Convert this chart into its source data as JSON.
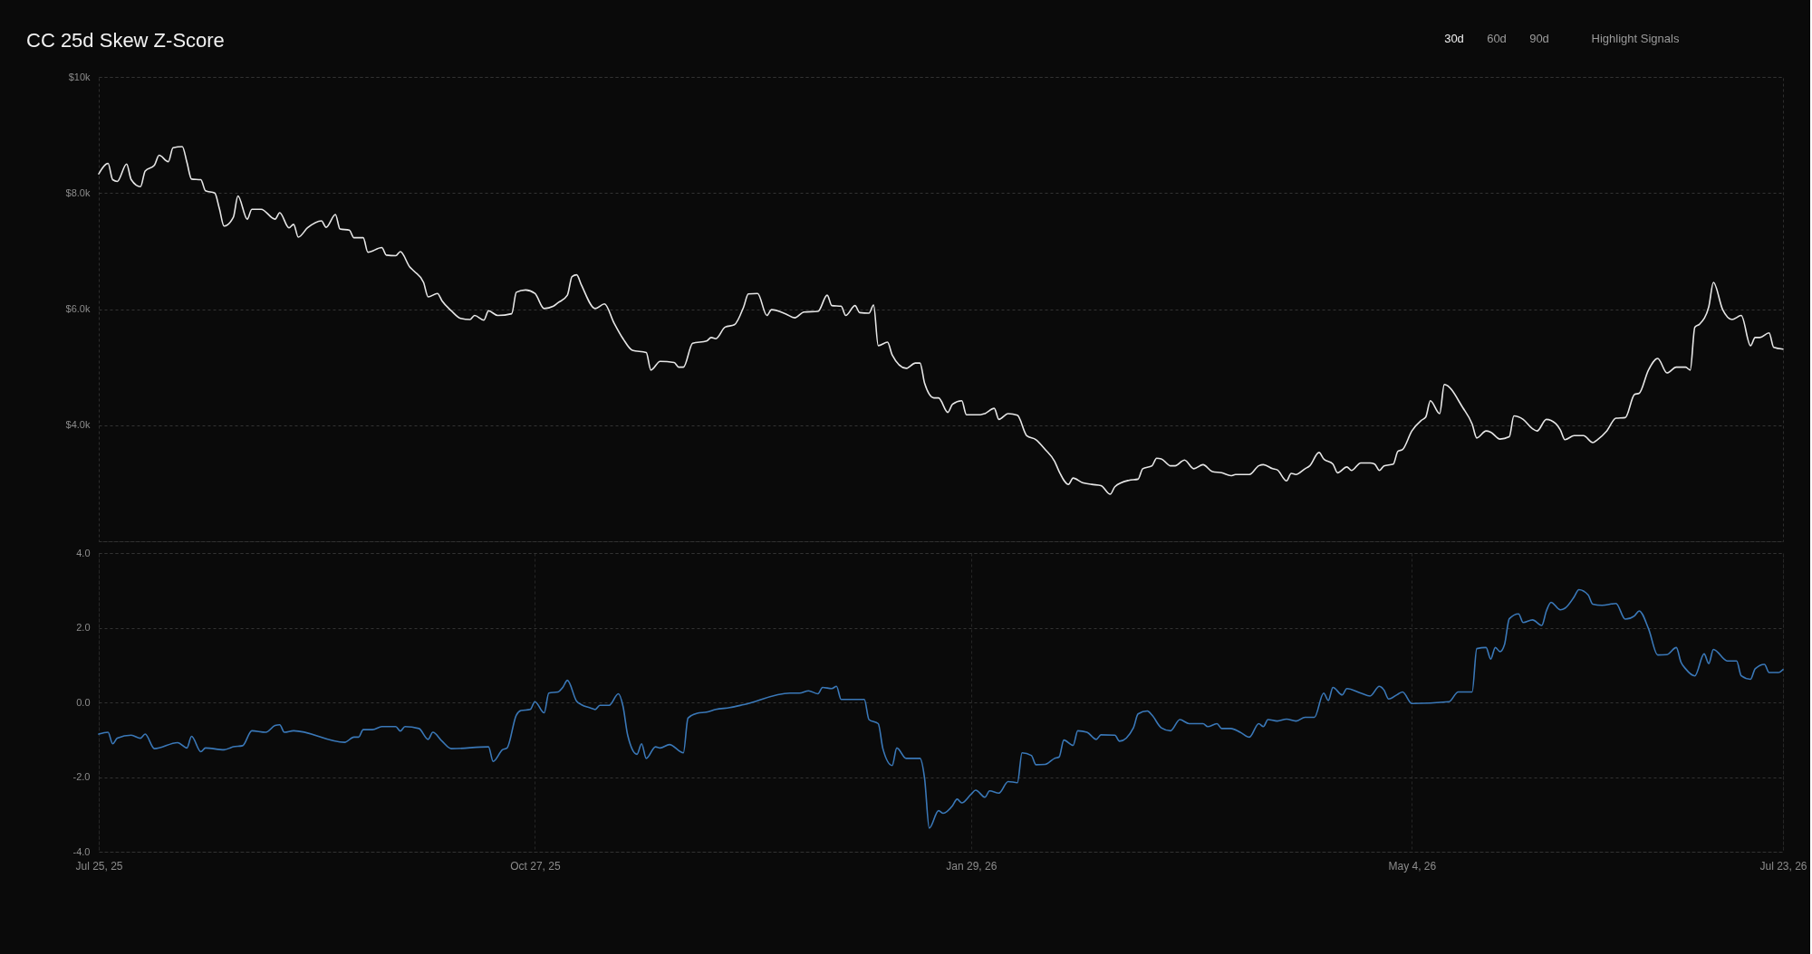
{
  "chart_data": [
    {
      "type": "line",
      "title": "CC 25d Skew Z-Score",
      "annotations": [
        "30d",
        "60d",
        "90d",
        "Highlight Signals"
      ],
      "x": [
        "2025-07-25",
        "2025-07-27",
        "2025-07-28",
        "2025-07-29",
        "2025-07-31",
        "2025-08-01",
        "2025-08-03",
        "2025-08-04",
        "2025-08-06",
        "2025-08-07",
        "2025-08-09",
        "2025-08-10",
        "2025-08-12",
        "2025-08-13",
        "2025-08-14",
        "2025-08-16",
        "2025-08-17",
        "2025-08-19",
        "2025-08-20",
        "2025-08-21",
        "2025-08-23",
        "2025-08-24",
        "2025-08-26",
        "2025-08-27",
        "2025-08-29",
        "2025-09-01",
        "2025-09-02",
        "2025-09-04",
        "2025-09-05",
        "2025-09-06",
        "2025-09-08",
        "2025-09-11",
        "2025-09-12",
        "2025-09-14",
        "2025-09-15",
        "2025-09-17",
        "2025-09-18",
        "2025-09-20",
        "2025-09-21",
        "2025-09-24",
        "2025-09-25",
        "2025-09-27",
        "2025-09-28",
        "2025-09-30",
        "2025-10-01",
        "2025-10-03",
        "2025-10-04",
        "2025-10-06",
        "2025-10-07",
        "2025-10-09",
        "2025-10-11",
        "2025-10-13",
        "2025-10-14",
        "2025-10-16",
        "2025-10-17",
        "2025-10-19",
        "2025-10-22",
        "2025-10-23",
        "2025-10-25",
        "2025-10-27",
        "2025-10-29",
        "2025-10-31",
        "2025-11-01",
        "2025-11-03",
        "2025-11-04",
        "2025-11-05",
        "2025-11-06",
        "2025-11-09",
        "2025-11-11",
        "2025-11-13",
        "2025-11-15",
        "2025-11-17",
        "2025-11-20",
        "2025-11-21",
        "2025-11-23",
        "2025-11-26",
        "2025-11-27",
        "2025-11-28",
        "2025-11-30",
        "2025-12-03",
        "2025-12-04",
        "2025-12-05",
        "2025-12-07",
        "2025-12-09",
        "2025-12-11",
        "2025-12-12",
        "2025-12-14",
        "2025-12-16",
        "2025-12-17",
        "2025-12-20",
        "2025-12-22",
        "2025-12-24",
        "2025-12-27",
        "2025-12-29",
        "2025-12-30",
        "2026-01-01",
        "2026-01-02",
        "2026-01-04",
        "2026-01-05",
        "2026-01-07",
        "2026-01-08",
        "2026-01-09",
        "2026-01-11",
        "2026-01-12",
        "2026-01-15",
        "2026-01-17",
        "2026-01-18",
        "2026-01-19",
        "2026-01-21",
        "2026-01-22",
        "2026-01-24",
        "2026-01-25",
        "2026-01-27",
        "2026-01-28",
        "2026-01-31",
        "2026-02-01",
        "2026-02-03",
        "2026-02-04",
        "2026-02-06",
        "2026-02-08",
        "2026-02-10",
        "2026-02-12",
        "2026-02-14",
        "2026-02-16",
        "2026-02-17",
        "2026-02-19",
        "2026-02-20",
        "2026-02-22",
        "2026-02-24",
        "2026-02-26",
        "2026-02-28",
        "2026-03-01",
        "2026-03-04",
        "2026-03-06",
        "2026-03-07",
        "2026-03-09",
        "2026-03-10",
        "2026-03-11",
        "2026-03-13",
        "2026-03-14",
        "2026-03-16",
        "2026-03-18",
        "2026-03-20",
        "2026-03-22",
        "2026-03-24",
        "2026-03-26",
        "2026-03-27",
        "2026-03-30",
        "2026-04-01",
        "2026-04-02",
        "2026-04-04",
        "2026-04-05",
        "2026-04-07",
        "2026-04-08",
        "2026-04-09",
        "2026-04-11",
        "2026-04-12",
        "2026-04-14",
        "2026-04-15",
        "2026-04-17",
        "2026-04-18",
        "2026-04-20",
        "2026-04-21",
        "2026-04-23",
        "2026-04-25",
        "2026-04-26",
        "2026-04-27",
        "2026-04-28",
        "2026-04-30",
        "2026-05-01",
        "2026-05-02",
        "2026-05-04",
        "2026-05-06",
        "2026-05-07",
        "2026-05-08",
        "2026-05-10",
        "2026-05-11",
        "2026-05-15",
        "2026-05-17",
        "2026-05-18",
        "2026-05-20",
        "2026-05-21",
        "2026-05-23",
        "2026-05-25",
        "2026-05-26",
        "2026-05-28",
        "2026-05-30",
        "2026-05-31",
        "2026-06-02",
        "2026-06-04",
        "2026-06-05",
        "2026-06-06",
        "2026-06-08",
        "2026-06-10",
        "2026-06-12",
        "2026-06-13",
        "2026-06-15",
        "2026-06-17",
        "2026-06-19",
        "2026-06-21",
        "2026-06-22",
        "2026-06-24",
        "2026-06-26",
        "2026-06-28",
        "2026-06-30",
        "2026-07-02",
        "2026-07-03",
        "2026-07-04",
        "2026-07-05",
        "2026-07-07",
        "2026-07-08",
        "2026-07-10",
        "2026-07-12",
        "2026-07-14",
        "2026-07-16",
        "2026-07-17",
        "2026-07-18",
        "2026-07-20",
        "2026-07-21",
        "2026-07-23"
      ],
      "series": [
        {
          "color": "#e6e6e6",
          "values": [
            8330,
            8510,
            8230,
            8200,
            8500,
            8230,
            8110,
            8380,
            8480,
            8650,
            8540,
            8780,
            8800,
            8530,
            8240,
            8230,
            8040,
            8000,
            7730,
            7430,
            7580,
            7950,
            7550,
            7720,
            7720,
            7550,
            7660,
            7400,
            7460,
            7240,
            7400,
            7520,
            7410,
            7630,
            7380,
            7360,
            7230,
            7230,
            6980,
            7060,
            6930,
            6920,
            6990,
            6730,
            6650,
            6460,
            6210,
            6270,
            6140,
            5970,
            5840,
            5820,
            5890,
            5810,
            5970,
            5890,
            5920,
            6290,
            6330,
            6270,
            6010,
            6050,
            6110,
            6240,
            6560,
            6590,
            6420,
            6010,
            6090,
            5770,
            5490,
            5290,
            5250,
            4950,
            5100,
            5080,
            5000,
            5000,
            5410,
            5450,
            5510,
            5490,
            5690,
            5730,
            6040,
            6260,
            6270,
            5890,
            5990,
            5920,
            5850,
            5950,
            5960,
            6240,
            6060,
            6050,
            5890,
            6060,
            5940,
            5930,
            6070,
            5370,
            5430,
            5210,
            4980,
            5070,
            5070,
            4720,
            4470,
            4470,
            4220,
            4360,
            4420,
            4180,
            4180,
            4200,
            4290,
            4100,
            4200,
            4170,
            3820,
            3750,
            3580,
            3380,
            3200,
            2980,
            3090,
            3010,
            2980,
            2960,
            2810,
            2940,
            3050,
            3070,
            3250,
            3300,
            3430,
            3420,
            3300,
            3300,
            3400,
            3250,
            3320,
            3200,
            3180,
            3130,
            3150,
            3150,
            3300,
            3320,
            3250,
            3230,
            3040,
            3170,
            3150,
            3250,
            3300,
            3530,
            3420,
            3330,
            3180,
            3280,
            3220,
            3350,
            3350,
            3330,
            3220,
            3300,
            3330,
            3550,
            3580,
            3900,
            4080,
            4140,
            4420,
            4200,
            4700,
            4300,
            4020,
            3780,
            3900,
            3880,
            3760,
            3800,
            4160,
            4100,
            3940,
            3900,
            4100,
            4030,
            3920,
            3750,
            3820,
            3820,
            3700,
            3750,
            3900,
            4120,
            4130,
            4530,
            4550,
            4950,
            5150,
            4900,
            5000,
            5000,
            4950,
            5690,
            5740,
            6040,
            6460,
            5990,
            5820,
            5890,
            5370,
            5510,
            5510,
            5590,
            5340,
            5310
          ]
        }
      ],
      "xlim": [
        "2025-07-25",
        "2026-07-23"
      ],
      "ylim": [
        2000,
        10000
      ],
      "yticks": [
        {
          "value": 2000,
          "label": null
        },
        {
          "value": 4000,
          "label": "$4.0k"
        },
        {
          "value": 6000,
          "label": "$6.0k"
        },
        {
          "value": 8000,
          "label": "$8.0k"
        },
        {
          "value": 10000,
          "label": "$10k"
        }
      ],
      "grid": "y",
      "tick_labels": "y"
    },
    {
      "type": "line",
      "x": [
        "2025-07-25",
        "2025-07-27",
        "2025-07-28",
        "2025-07-29",
        "2025-08-01",
        "2025-08-03",
        "2025-08-04",
        "2025-08-06",
        "2025-08-11",
        "2025-08-13",
        "2025-08-14",
        "2025-08-16",
        "2025-08-17",
        "2025-08-21",
        "2025-08-23",
        "2025-08-25",
        "2025-08-27",
        "2025-08-30",
        "2025-09-01",
        "2025-09-02",
        "2025-09-03",
        "2025-09-05",
        "2025-09-16",
        "2025-09-18",
        "2025-09-19",
        "2025-09-20",
        "2025-09-22",
        "2025-09-24",
        "2025-09-27",
        "2025-09-28",
        "2025-09-29",
        "2025-10-02",
        "2025-10-04",
        "2025-10-05",
        "2025-10-07",
        "2025-10-09",
        "2025-10-17",
        "2025-10-18",
        "2025-10-20",
        "2025-10-21",
        "2025-10-23",
        "2025-10-24",
        "2025-10-26",
        "2025-10-27",
        "2025-10-29",
        "2025-10-30",
        "2025-11-01",
        "2025-11-02",
        "2025-11-03",
        "2025-11-05",
        "2025-11-06",
        "2025-11-08",
        "2025-11-09",
        "2025-11-10",
        "2025-11-12",
        "2025-11-14",
        "2025-11-15",
        "2025-11-16",
        "2025-11-18",
        "2025-11-19",
        "2025-11-20",
        "2025-11-22",
        "2025-11-23",
        "2025-11-25",
        "2025-11-28",
        "2025-11-29",
        "2025-12-01",
        "2025-12-03",
        "2025-12-05",
        "2025-12-08",
        "2025-12-11",
        "2025-12-21",
        "2025-12-23",
        "2025-12-25",
        "2025-12-27",
        "2025-12-28",
        "2025-12-30",
        "2025-12-31",
        "2026-01-01",
        "2026-01-03",
        "2026-01-06",
        "2026-01-07",
        "2026-01-09",
        "2026-01-10",
        "2026-01-12",
        "2026-01-13",
        "2026-01-15",
        "2026-01-18",
        "2026-01-19",
        "2026-01-20",
        "2026-01-22",
        "2026-01-23",
        "2026-01-25",
        "2026-01-26",
        "2026-01-27",
        "2026-01-29",
        "2026-01-30",
        "2026-02-01",
        "2026-02-02",
        "2026-02-04",
        "2026-02-06",
        "2026-02-08",
        "2026-02-09",
        "2026-02-11",
        "2026-02-12",
        "2026-02-14",
        "2026-02-16",
        "2026-02-17",
        "2026-02-18",
        "2026-02-20",
        "2026-02-21",
        "2026-02-23",
        "2026-02-25",
        "2026-02-26",
        "2026-03-01",
        "2026-03-02",
        "2026-03-05",
        "2026-03-06",
        "2026-03-08",
        "2026-03-09",
        "2026-03-11",
        "2026-03-13",
        "2026-03-15",
        "2026-03-17",
        "2026-03-20",
        "2026-03-21",
        "2026-03-23",
        "2026-03-24",
        "2026-03-26",
        "2026-03-28",
        "2026-03-30",
        "2026-04-01",
        "2026-04-02",
        "2026-04-03",
        "2026-04-05",
        "2026-04-07",
        "2026-04-09",
        "2026-04-11",
        "2026-04-13",
        "2026-04-15",
        "2026-04-16",
        "2026-04-17",
        "2026-04-19",
        "2026-04-20",
        "2026-04-23",
        "2026-04-25",
        "2026-04-27",
        "2026-04-28",
        "2026-04-29",
        "2026-05-01",
        "2026-05-02",
        "2026-05-04",
        "2026-05-12",
        "2026-05-14",
        "2026-05-17",
        "2026-05-18",
        "2026-05-20",
        "2026-05-21",
        "2026-05-22",
        "2026-05-23",
        "2026-05-24",
        "2026-05-25",
        "2026-05-27",
        "2026-05-28",
        "2026-05-30",
        "2026-06-01",
        "2026-06-02",
        "2026-06-03",
        "2026-06-05",
        "2026-06-06",
        "2026-06-08",
        "2026-06-09",
        "2026-06-11",
        "2026-06-12",
        "2026-06-14",
        "2026-06-17",
        "2026-06-19",
        "2026-06-21",
        "2026-06-22",
        "2026-06-24",
        "2026-06-26",
        "2026-06-28",
        "2026-06-30",
        "2026-07-01",
        "2026-07-02",
        "2026-07-04",
        "2026-07-06",
        "2026-07-07",
        "2026-07-08",
        "2026-07-11",
        "2026-07-13",
        "2026-07-14",
        "2026-07-16",
        "2026-07-17",
        "2026-07-19",
        "2026-07-20",
        "2026-07-22",
        "2026-07-23"
      ],
      "series": [
        {
          "color": "#3a78b8",
          "values": [
            -0.85,
            -0.8,
            -1.11,
            -0.96,
            -0.88,
            -0.96,
            -0.85,
            -1.24,
            -1.08,
            -1.22,
            -0.91,
            -1.32,
            -1.22,
            -1.27,
            -1.19,
            -1.16,
            -0.76,
            -0.8,
            -0.62,
            -0.6,
            -0.8,
            -0.76,
            -1.07,
            -0.93,
            -0.93,
            -0.73,
            -0.73,
            -0.65,
            -0.65,
            -0.77,
            -0.65,
            -0.7,
            -0.99,
            -0.8,
            -1.04,
            -1.24,
            -1.19,
            -1.58,
            -1.27,
            -1.22,
            -0.34,
            -0.22,
            -0.19,
            0.02,
            -0.28,
            0.25,
            0.28,
            0.4,
            0.59,
            0.03,
            -0.06,
            -0.15,
            -0.19,
            -0.08,
            -0.08,
            0.23,
            -0.11,
            -0.88,
            -1.39,
            -1.11,
            -1.5,
            -1.19,
            -1.22,
            -1.13,
            -1.35,
            -0.42,
            -0.29,
            -0.26,
            -0.19,
            -0.14,
            -0.06,
            0.25,
            0.25,
            0.31,
            0.23,
            0.4,
            0.37,
            0.43,
            0.08,
            0.08,
            0.08,
            -0.46,
            -0.57,
            -1.24,
            -1.69,
            -1.22,
            -1.5,
            -1.5,
            -2.05,
            -3.37,
            -2.9,
            -2.97,
            -2.77,
            -2.59,
            -2.69,
            -2.46,
            -2.35,
            -2.54,
            -2.37,
            -2.43,
            -2.12,
            -2.15,
            -1.35,
            -1.42,
            -1.67,
            -1.66,
            -1.5,
            -1.46,
            -1.01,
            -1.15,
            -0.76,
            -0.8,
            -0.99,
            -0.87,
            -0.88,
            -1.04,
            -0.68,
            -0.31,
            -0.23,
            -0.34,
            -0.68,
            -0.76,
            -0.46,
            -0.57,
            -0.57,
            -0.65,
            -0.57,
            -0.7,
            -0.7,
            -0.8,
            -0.93,
            -0.57,
            -0.65,
            -0.46,
            -0.5,
            -0.45,
            -0.5,
            -0.4,
            -0.4,
            0.25,
            0.05,
            0.4,
            0.2,
            0.37,
            0.25,
            0.17,
            0.43,
            0.33,
            0.09,
            0.22,
            0.28,
            -0.03,
            0.02,
            0.28,
            0.28,
            1.44,
            1.47,
            1.16,
            1.47,
            1.36,
            1.56,
            2.24,
            2.37,
            2.14,
            2.21,
            2.06,
            2.45,
            2.68,
            2.48,
            2.52,
            2.83,
            3.02,
            2.88,
            2.63,
            2.6,
            2.65,
            2.23,
            2.32,
            2.45,
            1.98,
            1.27,
            1.28,
            1.47,
            1.08,
            0.9,
            0.71,
            1.3,
            1.04,
            1.42,
            1.11,
            1.11,
            0.71,
            0.62,
            0.9,
            1.02,
            0.8,
            0.8,
            0.88
          ]
        }
      ],
      "xlim": [
        "2025-07-25",
        "2026-07-23"
      ],
      "xticks": [
        {
          "value": "2025-07-25",
          "label": "Jul 25, 25"
        },
        {
          "value": "2025-10-27",
          "label": "Oct 27, 25"
        },
        {
          "value": "2026-01-29",
          "label": "Jan 29, 26"
        },
        {
          "value": "2026-05-04",
          "label": "May 4, 26"
        },
        {
          "value": "2026-07-23",
          "label": "Jul 23, 26"
        }
      ],
      "ylim": [
        -4,
        4
      ],
      "yticks": [
        {
          "value": -4,
          "label": "-4.0"
        },
        {
          "value": -2,
          "label": "-2.0"
        },
        {
          "value": 0,
          "label": "0.0"
        },
        {
          "value": 2,
          "label": "2.0"
        },
        {
          "value": 4,
          "label": "4.0"
        }
      ],
      "grid": true
    }
  ]
}
